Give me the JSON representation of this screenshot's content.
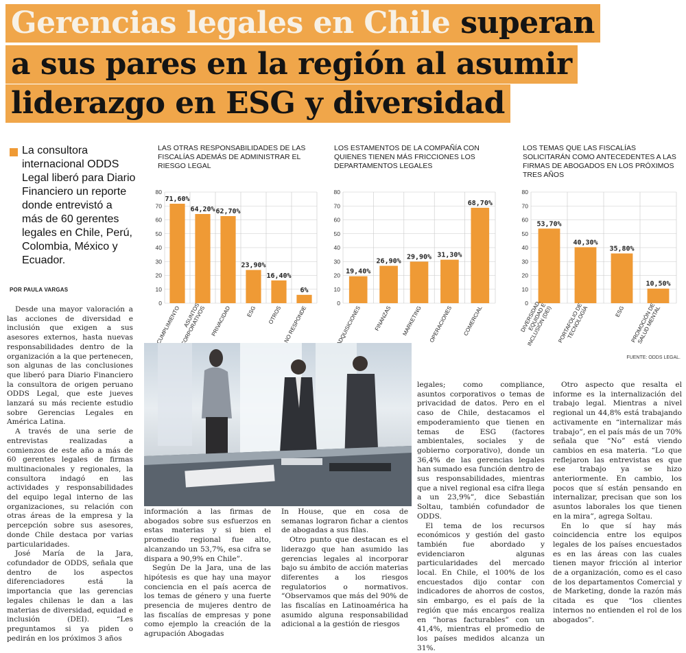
{
  "headline": {
    "line1_light": "Gerencias legales en Chile",
    "line1_dark": "superan",
    "line2": "a sus pares en la región al asumir",
    "line3": "liderazgo en ESG y diversidad"
  },
  "lead": "La consultora internacional ODDS Legal liberó para Diario Financiero un reporte donde entrevistó a más de 60 gerentes legales en Chile, Perú, Colombia, México y Ecuador.",
  "byline": "POR PAULA VARGAS",
  "source": "FUENTE: ODDS LEGAL.",
  "accent_color": "#ef9a35",
  "columns": {
    "c1": [
      "Desde una mayor valoración a las acciones de diversidad e inclusión que exigen a sus asesores externos, hasta nuevas responsabilidades dentro de la organización a la que pertenecen, son algunas de las conclusiones que liberó para Diario Financiero la consultora de origen peruano ODDS Legal, que este jueves lanzará su más reciente estudio sobre Gerencias Legales en América Latina.",
      "A través de una serie de entrevistas realizadas a comienzos de este año a más de 60 gerentes legales de firmas multinacionales y regionales, la consultora indagó en las actividades y responsabilidades del equipo legal interno de las organizaciones, su relación con otras áreas de la empresa y la percepción sobre sus asesores, donde Chile destaca por varias particularidades.",
      "José María de la Jara, cofundador de ODDS, señala que dentro de los aspectos diferenciadores está la importancia que las gerencias legales chilenas le dan a las materias de diversidad, equidad e inclusión (DEI). “Les preguntamos si ya piden o pedirán en los próximos 3 años"
    ],
    "c2": [
      "información a las firmas de abogados sobre sus esfuerzos en estas materias y si bien el promedio regional fue alto, alcanzando un 53,7%, esa cifra se dispara a 90,9% en Chile”.",
      "Según De la Jara, una de las hipótesis es que hay una mayor conciencia en el país acerca de los temas de género y una fuerte presencia de mujeres dentro de las fiscalías de empresas y pone como ejemplo la creación de la agrupación Abogadas"
    ],
    "c3": [
      "In House, que en cosa de semanas lograron fichar a cientos de abogadas a sus filas.",
      "Otro punto que destacan es el liderazgo que han asumido las gerencias legales al incorporar bajo su ámbito de acción materias diferentes a los riesgos regulatorios o normativos. “Observamos que más del 90% de las fiscalías en Latinoamérica ha asumido alguna responsabilidad adicional a la gestión de riesgos"
    ],
    "c4": [
      "legales; como compliance, asuntos corporativos o temas de privacidad de datos. Pero en el caso de Chile, destacamos el empoderamiento que tienen en temas de ESG (factores ambientales, sociales y de gobierno corporativo), donde un 36,4% de las gerencias legales han sumado esa función dentro de sus responsabilidades, mientras que a nivel regional esa cifra llega a un 23,9%”, dice Sebastián Soltau, también cofundador de ODDS.",
      "El tema de los recursos económicos y gestión del gasto también fue abordado y evidenciaron algunas particularidades del mercado local. En Chile, el 100% de los encuestados dijo contar con indicadores de ahorros de costos, sin embargo, es el país de la región que más encargos realiza en “horas facturables” con un 41,4%, mientras el promedio de los países medidos alcanza un 31%."
    ],
    "c5": [
      "Otro aspecto que resalta el informe es la internalización del trabajo legal. Mientras a nivel regional un 44,8% está trabajando activamente en “internalizar más trabajo”, en el país más de un 70% señala que “No” está viendo cambios en esa materia. “Lo que reflejaron las entrevistas es que ese trabajo ya se hizo anteriormente. En cambio, los pocos que sí están pensando en internalizar, precisan que son los asuntos laborales los que tienen en la mira”, agrega Soltau.",
      "En lo que sí hay más coincidencia entre los equipos legales de los países encuestados es en las áreas con las cuales tienen mayor fricción al interior de a organización, como es el caso de los departamentos Comercial y de Marketing, donde la razón más citada es que “los clientes internos no entienden el rol de los abogados”."
    ]
  },
  "chart_data": [
    {
      "type": "bar",
      "title": "LAS OTRAS RESPONSABILIDADES DE LAS FISCALÍAS ADEMÁS DE ADMINISTRAR EL RIESGO LEGAL",
      "categories": [
        "CUMPLIMIENTO",
        "ASUNTOS CORPORATIVOS",
        "PRIVACIDAD",
        "ESG",
        "OTROS",
        "NO RESPONDE"
      ],
      "values": [
        71.6,
        64.2,
        62.7,
        23.9,
        16.4,
        6
      ],
      "labels": [
        "71,60%",
        "64,20%",
        "62,70%",
        "23,90%",
        "16,40%",
        "6%"
      ],
      "ylim": [
        0,
        80
      ],
      "yticks": [
        "80",
        "70",
        "60",
        "50",
        "40",
        "30",
        "20",
        "10",
        "0"
      ],
      "grid": true,
      "bar_color": "#ef9a35"
    },
    {
      "type": "bar",
      "title": "LOS ESTAMENTOS DE LA COMPAÑÍA CON QUIENES TIENEN MÁS FRICCIONES LOS DEPARTAMENTOS LEGALES",
      "categories": [
        "ADQUISICIONES",
        "FINANZAS",
        "MARKETING",
        "OPERACIONES",
        "COMERCIAL"
      ],
      "values": [
        19.4,
        26.9,
        29.9,
        31.3,
        68.7
      ],
      "labels": [
        "19,40%",
        "26,90%",
        "29,90%",
        "31,30%",
        "68,70%"
      ],
      "ylim": [
        0,
        80
      ],
      "yticks": [
        "80",
        "70",
        "60",
        "50",
        "40",
        "30",
        "20",
        "10",
        "0"
      ],
      "grid": true,
      "bar_color": "#ef9a35"
    },
    {
      "type": "bar",
      "title": "LOS TEMAS QUE LAS FISCALÍAS SOLICITARÁN COMO ANTECEDENTES A LAS FIRMAS DE ABOGADOS EN LOS PRÓXIMOS TRES AÑOS",
      "categories": [
        "DIVERSIDAD, EQUIDAD E INCLUSIÓN (DEI)",
        "PORTAFOLIO DE TECNOLOGÍA",
        "ESG",
        "PROMOCIÓN DE SALUD MENTAL"
      ],
      "values": [
        53.7,
        40.3,
        35.8,
        10.5
      ],
      "labels": [
        "53,70%",
        "40,30%",
        "35,80%",
        "10,50%"
      ],
      "ylim": [
        0,
        80
      ],
      "yticks": [
        "80",
        "70",
        "60",
        "50",
        "40",
        "30",
        "20",
        "10",
        "0"
      ],
      "grid": true,
      "bar_color": "#ef9a35"
    }
  ]
}
